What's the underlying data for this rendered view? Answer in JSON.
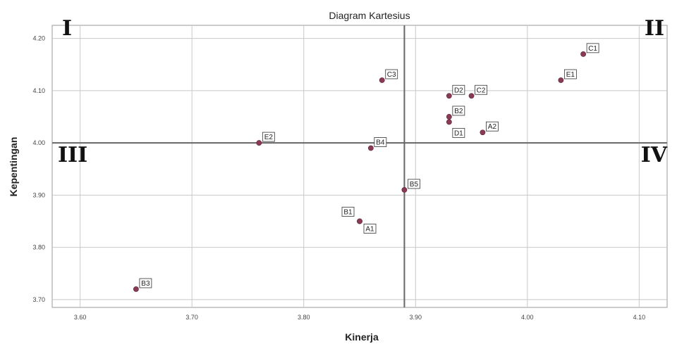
{
  "chart_data": {
    "type": "scatter",
    "title": "Diagram Kartesius",
    "xlabel": "Kinerja",
    "ylabel": "Kepentingan",
    "xlim": [
      3.575,
      4.125
    ],
    "ylim": [
      3.685,
      4.225
    ],
    "xticks": [
      "3.60",
      "3.70",
      "3.80",
      "3.90",
      "4.00",
      "4.10"
    ],
    "xtick_values": [
      3.6,
      3.7,
      3.8,
      3.9,
      4.0,
      4.1
    ],
    "yticks": [
      "3.70",
      "3.80",
      "3.90",
      "4.00",
      "4.10",
      "4.20"
    ],
    "ytick_values": [
      3.7,
      3.8,
      3.9,
      4.0,
      4.1,
      4.2
    ],
    "grid": true,
    "reference_lines": {
      "x": 3.89,
      "y": 4.0
    },
    "quadrants": [
      "I",
      "II",
      "III",
      "IV"
    ],
    "marker_color": "#8a3a52",
    "points": [
      {
        "label": "C1",
        "x": 4.05,
        "y": 4.17
      },
      {
        "label": "E1",
        "x": 4.03,
        "y": 4.12
      },
      {
        "label": "C3",
        "x": 3.87,
        "y": 4.12
      },
      {
        "label": "D2",
        "x": 3.93,
        "y": 4.09
      },
      {
        "label": "C2",
        "x": 3.95,
        "y": 4.09
      },
      {
        "label": "B2",
        "x": 3.93,
        "y": 4.05
      },
      {
        "label": "A2",
        "x": 3.96,
        "y": 4.02
      },
      {
        "label": "D1",
        "x": 3.93,
        "y": 4.04
      },
      {
        "label": "E2",
        "x": 3.76,
        "y": 4.0
      },
      {
        "label": "B4",
        "x": 3.86,
        "y": 3.99
      },
      {
        "label": "B5",
        "x": 3.89,
        "y": 3.91
      },
      {
        "label": "B1",
        "x": 3.85,
        "y": 3.85
      },
      {
        "label": "A1",
        "x": 3.85,
        "y": 3.85
      },
      {
        "label": "B3",
        "x": 3.65,
        "y": 3.72
      }
    ]
  }
}
